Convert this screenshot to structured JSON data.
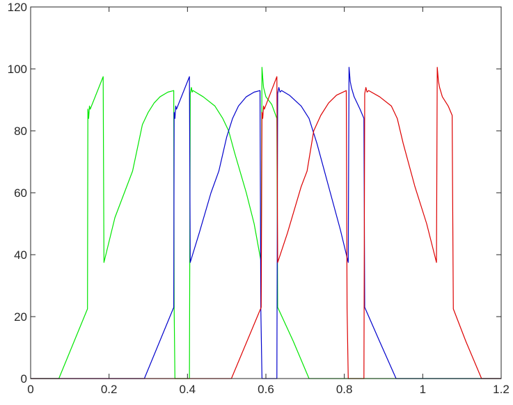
{
  "chart_data": {
    "type": "line",
    "title": "",
    "xlabel": "",
    "ylabel": "",
    "xlim": [
      0,
      1.2
    ],
    "ylim": [
      0,
      120
    ],
    "grid": false,
    "legend": "none",
    "x_ticks": [
      0,
      0.2,
      0.4,
      0.6,
      0.8,
      1,
      1.2
    ],
    "y_ticks": [
      0,
      20,
      40,
      60,
      80,
      100,
      120
    ],
    "x_tick_labels": [
      "0",
      "0.2",
      "0.4",
      "0.6",
      "0.8",
      "1",
      "1.2"
    ],
    "y_tick_labels": [
      "0",
      "20",
      "40",
      "60",
      "80",
      "100",
      "120"
    ],
    "series": [
      {
        "color": "#00e600",
        "points": [
          [
            0,
            0
          ],
          [
            0.072,
            0
          ],
          [
            0.145,
            22.5
          ],
          [
            0.146,
            87
          ],
          [
            0.148,
            84
          ],
          [
            0.15,
            88
          ],
          [
            0.152,
            87
          ],
          [
            0.185,
            97.5
          ],
          [
            0.187,
            37.5
          ],
          [
            0.215,
            52
          ],
          [
            0.26,
            67
          ],
          [
            0.285,
            82
          ],
          [
            0.3,
            86
          ],
          [
            0.315,
            89
          ],
          [
            0.33,
            91
          ],
          [
            0.35,
            92.5
          ],
          [
            0.365,
            93
          ],
          [
            0.366,
            23
          ],
          [
            0.368,
            0
          ],
          [
            0.405,
            0
          ],
          [
            0.407,
            92
          ],
          [
            0.41,
            94
          ],
          [
            0.412,
            92.5
          ],
          [
            0.414,
            93
          ],
          [
            0.44,
            91
          ],
          [
            0.47,
            88
          ],
          [
            0.49,
            84
          ],
          [
            0.505,
            80
          ],
          [
            0.52,
            73
          ],
          [
            0.55,
            60
          ],
          [
            0.57,
            50
          ],
          [
            0.588,
            37.5
          ],
          [
            0.59,
            100.5
          ],
          [
            0.592,
            97
          ],
          [
            0.594,
            94
          ],
          [
            0.6,
            91
          ],
          [
            0.615,
            88.5
          ],
          [
            0.628,
            84
          ],
          [
            0.63,
            23
          ],
          [
            0.67,
            12
          ],
          [
            0.71,
            0
          ],
          [
            1.2,
            0
          ]
        ]
      },
      {
        "color": "#0000cc",
        "points": [
          [
            0,
            0
          ],
          [
            0.29,
            0
          ],
          [
            0.365,
            23
          ],
          [
            0.366,
            86
          ],
          [
            0.368,
            84
          ],
          [
            0.37,
            88
          ],
          [
            0.372,
            87
          ],
          [
            0.405,
            97.5
          ],
          [
            0.407,
            37.5
          ],
          [
            0.43,
            47
          ],
          [
            0.46,
            60
          ],
          [
            0.48,
            67
          ],
          [
            0.5,
            78
          ],
          [
            0.515,
            84
          ],
          [
            0.53,
            88
          ],
          [
            0.55,
            91
          ],
          [
            0.57,
            92.5
          ],
          [
            0.585,
            93
          ],
          [
            0.587,
            23
          ],
          [
            0.59,
            0
          ],
          [
            0.628,
            0
          ],
          [
            0.63,
            92
          ],
          [
            0.633,
            94
          ],
          [
            0.636,
            92.5
          ],
          [
            0.64,
            93
          ],
          [
            0.66,
            91.5
          ],
          [
            0.69,
            88
          ],
          [
            0.71,
            84
          ],
          [
            0.73,
            76
          ],
          [
            0.76,
            62
          ],
          [
            0.79,
            48
          ],
          [
            0.81,
            37.5
          ],
          [
            0.812,
            100.5
          ],
          [
            0.815,
            96
          ],
          [
            0.818,
            94
          ],
          [
            0.825,
            91
          ],
          [
            0.84,
            87
          ],
          [
            0.85,
            84
          ],
          [
            0.852,
            23
          ],
          [
            0.89,
            12
          ],
          [
            0.932,
            0
          ],
          [
            1.2,
            0
          ]
        ]
      },
      {
        "color": "#dd0000",
        "points": [
          [
            0,
            0
          ],
          [
            0.512,
            0
          ],
          [
            0.588,
            23
          ],
          [
            0.59,
            86
          ],
          [
            0.592,
            84
          ],
          [
            0.594,
            88
          ],
          [
            0.596,
            87
          ],
          [
            0.628,
            97.5
          ],
          [
            0.63,
            37.5
          ],
          [
            0.655,
            47
          ],
          [
            0.69,
            62
          ],
          [
            0.705,
            67
          ],
          [
            0.722,
            80
          ],
          [
            0.74,
            85
          ],
          [
            0.76,
            89
          ],
          [
            0.78,
            91.5
          ],
          [
            0.805,
            93
          ],
          [
            0.807,
            23
          ],
          [
            0.81,
            0
          ],
          [
            0.85,
            0
          ],
          [
            0.852,
            92
          ],
          [
            0.855,
            94
          ],
          [
            0.858,
            92.5
          ],
          [
            0.862,
            93
          ],
          [
            0.89,
            91
          ],
          [
            0.92,
            88
          ],
          [
            0.935,
            84
          ],
          [
            0.95,
            76
          ],
          [
            0.98,
            62
          ],
          [
            1.01,
            50
          ],
          [
            1.035,
            37.5
          ],
          [
            1.037,
            100.5
          ],
          [
            1.04,
            96
          ],
          [
            1.043,
            94
          ],
          [
            1.05,
            91
          ],
          [
            1.065,
            88
          ],
          [
            1.075,
            85
          ],
          [
            1.078,
            22.5
          ],
          [
            1.11,
            12
          ],
          [
            1.15,
            0
          ],
          [
            1.2,
            0
          ]
        ]
      }
    ]
  }
}
